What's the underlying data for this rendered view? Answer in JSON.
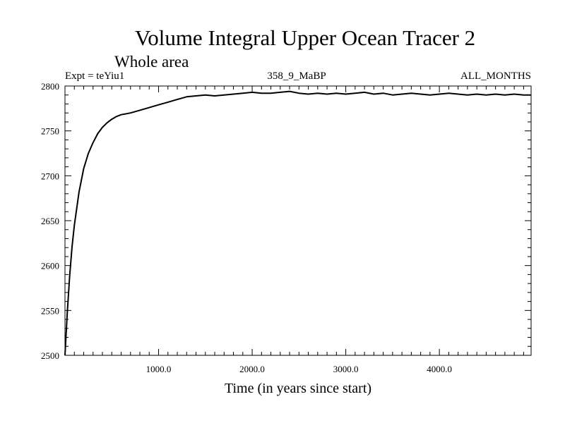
{
  "chart_data": {
    "type": "line",
    "title": "Volume Integral Upper Ocean Tracer 2",
    "subtitle": "Whole area",
    "expt_label": "Expt = teYiu1",
    "run_label": "358_9_MaBP",
    "months_label": "ALL_MONTHS",
    "xlabel": "Time (in years since start)",
    "ylabel": "",
    "xlim": [
      0,
      4980
    ],
    "ylim": [
      2500,
      2800
    ],
    "x_tick_values": [
      1000,
      2000,
      3000,
      4000
    ],
    "x_tick_labels": [
      "1000.0",
      "2000.0",
      "3000.0",
      "4000.0"
    ],
    "y_tick_values": [
      2500,
      2550,
      2600,
      2650,
      2700,
      2750,
      2800
    ],
    "y_tick_labels": [
      "2500",
      "2550",
      "2600",
      "2650",
      "2700",
      "2750",
      "2800"
    ],
    "grid": false,
    "series": [
      {
        "name": "Volume Integral Upper Ocean Tracer 2",
        "x": [
          0,
          25,
          50,
          75,
          100,
          150,
          200,
          250,
          300,
          350,
          400,
          450,
          500,
          550,
          600,
          650,
          700,
          800,
          900,
          1000,
          1100,
          1200,
          1300,
          1400,
          1500,
          1600,
          1700,
          1800,
          1900,
          2000,
          2100,
          2200,
          2300,
          2400,
          2500,
          2600,
          2700,
          2800,
          2900,
          3000,
          3100,
          3200,
          3300,
          3400,
          3500,
          3600,
          3700,
          3800,
          3900,
          4000,
          4100,
          4200,
          4300,
          4400,
          4500,
          4600,
          4700,
          4800,
          4900,
          4980
        ],
        "values": [
          2500,
          2548,
          2588,
          2620,
          2645,
          2682,
          2708,
          2725,
          2737,
          2747,
          2754,
          2759,
          2763,
          2766,
          2768,
          2769,
          2770,
          2773,
          2776,
          2779,
          2782,
          2785,
          2788,
          2789,
          2790,
          2789,
          2790,
          2791,
          2792,
          2793,
          2792,
          2792,
          2793,
          2794,
          2792,
          2791,
          2792,
          2791,
          2792,
          2791,
          2792,
          2793,
          2791,
          2792,
          2790,
          2791,
          2792,
          2791,
          2790,
          2791,
          2792,
          2791,
          2790,
          2791,
          2790,
          2791,
          2790,
          2791,
          2790,
          2790
        ]
      }
    ]
  }
}
